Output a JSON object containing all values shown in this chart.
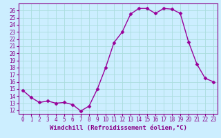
{
  "x": [
    0,
    1,
    2,
    3,
    4,
    5,
    6,
    7,
    8,
    9,
    10,
    11,
    12,
    13,
    14,
    15,
    16,
    17,
    18,
    19,
    20,
    21,
    22,
    23
  ],
  "y": [
    14.8,
    13.8,
    13.1,
    13.3,
    13.0,
    13.1,
    12.8,
    11.9,
    12.6,
    15.0,
    18.0,
    21.5,
    23.0,
    25.5,
    26.3,
    26.3,
    25.6,
    26.3,
    26.2,
    25.6,
    21.6,
    18.5,
    16.5,
    16.0
  ],
  "line_color": "#990099",
  "marker": "D",
  "markersize": 2.5,
  "linewidth": 1.0,
  "xlabel": "Windchill (Refroidissement éolien,°C)",
  "xlim": [
    -0.5,
    23.5
  ],
  "ylim": [
    11.5,
    27.0
  ],
  "yticks": [
    12,
    13,
    14,
    15,
    16,
    17,
    18,
    19,
    20,
    21,
    22,
    23,
    24,
    25,
    26
  ],
  "xticks": [
    0,
    1,
    2,
    3,
    4,
    5,
    6,
    7,
    8,
    9,
    10,
    11,
    12,
    13,
    14,
    15,
    16,
    17,
    18,
    19,
    20,
    21,
    22,
    23
  ],
  "background_color": "#cceeff",
  "grid_color": "#aadddd",
  "tick_color": "#880088",
  "label_color": "#880088",
  "xlabel_fontsize": 6.5,
  "tick_fontsize": 5.5
}
